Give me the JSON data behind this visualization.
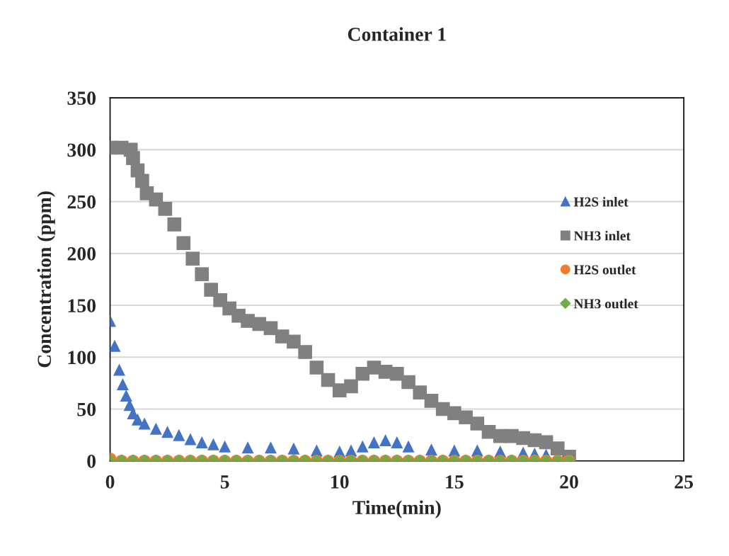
{
  "chart_data": {
    "type": "scatter",
    "title": "Container 1",
    "xlabel": "Time(min)",
    "ylabel": "Concentration (ppm)",
    "xlim": [
      0,
      25
    ],
    "xticks": [
      0,
      5,
      10,
      15,
      20,
      25
    ],
    "ylim": [
      0,
      350
    ],
    "yticks": [
      0,
      50,
      100,
      150,
      200,
      250,
      300,
      350
    ],
    "grid": "y",
    "legend": "right",
    "series": [
      {
        "name": "H2S inlet",
        "color": "#4472c4",
        "marker": "triangle",
        "x": [
          0,
          0.2,
          0.4,
          0.55,
          0.7,
          0.85,
          1.0,
          1.2,
          1.5,
          2,
          2.5,
          3,
          3.5,
          4,
          4.5,
          5,
          6,
          7,
          8,
          9,
          10,
          10.5,
          11,
          11.5,
          12,
          12.5,
          13,
          14,
          15,
          16,
          17,
          18,
          18.5,
          19
        ],
        "values": [
          135,
          111,
          88,
          74,
          63,
          54,
          46,
          40,
          36,
          31,
          28,
          25,
          21,
          18,
          16,
          14,
          13,
          13,
          12,
          10,
          9,
          10,
          14,
          18,
          20,
          18,
          14,
          11,
          10,
          10,
          9,
          8,
          7,
          6
        ]
      },
      {
        "name": "NH3 inlet",
        "color": "#808080",
        "marker": "square",
        "x": [
          0,
          0.5,
          0.9,
          1.0,
          1.2,
          1.4,
          1.6,
          2.0,
          2.4,
          2.8,
          3.2,
          3.6,
          4.0,
          4.4,
          4.8,
          5.2,
          5.6,
          6.0,
          6.5,
          7.0,
          7.5,
          8.0,
          8.5,
          9.0,
          9.5,
          10.0,
          10.5,
          11.0,
          11.5,
          12.0,
          12.5,
          13.0,
          13.5,
          14.0,
          14.5,
          15.0,
          15.5,
          16.0,
          16.5,
          17.0,
          17.5,
          18.0,
          18.5,
          19.0,
          19.5,
          20.0
        ],
        "values": [
          302,
          302,
          300,
          292,
          280,
          270,
          258,
          252,
          243,
          228,
          210,
          195,
          180,
          165,
          155,
          147,
          140,
          135,
          132,
          128,
          120,
          115,
          105,
          90,
          78,
          68,
          72,
          84,
          90,
          86,
          84,
          76,
          66,
          58,
          50,
          46,
          42,
          36,
          28,
          24,
          24,
          22,
          20,
          18,
          12,
          4
        ]
      },
      {
        "name": "H2S outlet",
        "color": "#ed7d31",
        "marker": "circle",
        "x": [
          0,
          0.5,
          1,
          1.5,
          2,
          2.5,
          3,
          3.5,
          4,
          4.5,
          5,
          5.5,
          6,
          6.5,
          7,
          7.5,
          8,
          8.5,
          9,
          9.5,
          10,
          10.5,
          11,
          11.5,
          12,
          12.5,
          13,
          13.5,
          14,
          14.5,
          15,
          15.5,
          16,
          16.5,
          17,
          17.5,
          18,
          18.5,
          19,
          19.5,
          20
        ],
        "values": [
          2,
          0,
          0,
          0,
          0,
          0,
          0,
          0,
          0,
          0,
          0,
          0,
          0,
          0,
          0,
          0,
          0,
          0,
          0,
          0,
          0,
          0,
          0,
          0,
          0,
          0,
          0,
          0,
          0,
          0,
          0,
          0,
          0,
          0,
          0,
          0,
          0,
          0,
          0,
          0,
          0
        ]
      },
      {
        "name": "NH3 outlet",
        "color": "#70ad47",
        "marker": "diamond",
        "x": [
          0,
          0.5,
          1,
          1.5,
          2,
          2.5,
          3,
          3.5,
          4,
          4.5,
          5,
          5.5,
          6,
          6.5,
          7,
          7.5,
          8,
          8.5,
          9,
          9.5,
          10,
          10.5,
          11,
          11.5,
          12,
          12.5,
          13,
          13.5,
          14,
          14.5,
          15,
          15.5,
          16,
          16.5,
          17,
          17.5,
          18,
          18.5,
          19,
          19.5,
          20
        ],
        "values": [
          0,
          0,
          0,
          0,
          0,
          0,
          0,
          0,
          0,
          0,
          0,
          0,
          0,
          0,
          0,
          0,
          0,
          0,
          0,
          0,
          0,
          0,
          0,
          0,
          0,
          0,
          0,
          0,
          0,
          0,
          0,
          0,
          0,
          0,
          0,
          0,
          0,
          0,
          0,
          0,
          0
        ]
      }
    ]
  }
}
